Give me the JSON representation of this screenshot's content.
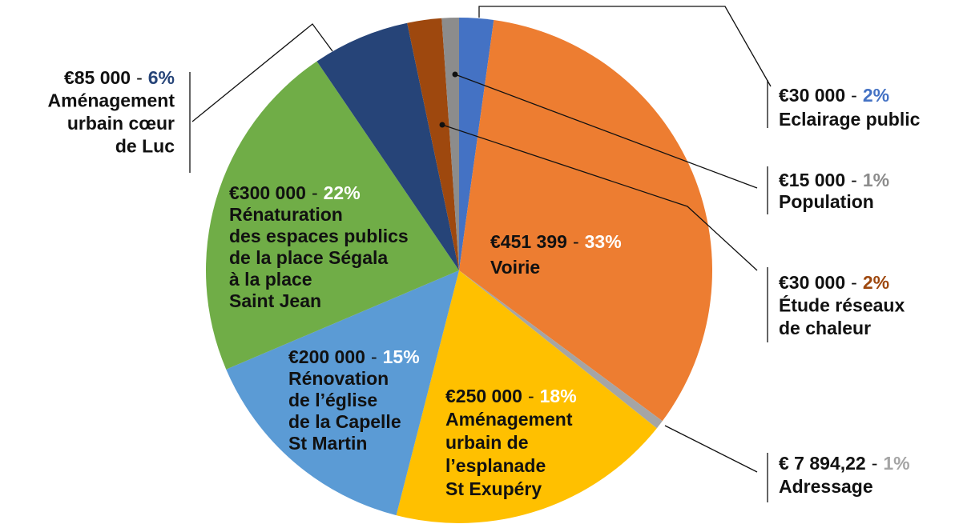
{
  "chart_data": {
    "type": "pie",
    "categories": [
      [
        "Eclairage public"
      ],
      [
        "Voirie"
      ],
      [
        "Adressage"
      ],
      [
        "Aménagement",
        "urbain de",
        "l’esplanade",
        "St Exupéry"
      ],
      [
        "Rénovation",
        "de l’église",
        "de la Capelle",
        "St Martin"
      ],
      [
        "Rénaturation",
        "des espaces publics",
        "de la place Ségala",
        "à la place",
        "Saint Jean"
      ],
      [
        "Aménagement",
        "urbain cœur",
        "de Luc"
      ],
      [
        "Étude réseaux",
        "de chaleur"
      ],
      [
        "Population"
      ]
    ],
    "values": [
      30000,
      451399,
      7894.22,
      250000,
      200000,
      300000,
      85000,
      30000,
      15000
    ],
    "value_labels": [
      "€30 000",
      "€451 399",
      "€ 7 894,22",
      "€250 000",
      "€200 000",
      "€300 000",
      "€85 000",
      "€30 000",
      "€15 000"
    ],
    "percent_labels": [
      "2%",
      "33%",
      "1%",
      "18%",
      "15%",
      "22%",
      "6%",
      "2%",
      "1%"
    ],
    "separator": "-",
    "colors": [
      "#4472c4",
      "#ed7d31",
      "#a5a5a5",
      "#ffc000",
      "#5b9bd5",
      "#70ad47",
      "#264478",
      "#9e480e",
      "#8c8c8c"
    ]
  }
}
